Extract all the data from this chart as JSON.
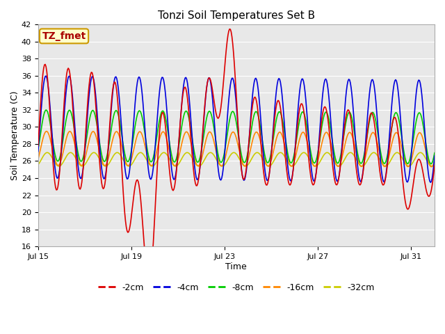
{
  "title": "Tonzi Soil Temperatures Set B",
  "xlabel": "Time",
  "ylabel": "Soil Temperature (C)",
  "ylim": [
    16,
    42
  ],
  "yticks": [
    16,
    18,
    20,
    22,
    24,
    26,
    28,
    30,
    32,
    34,
    36,
    38,
    40,
    42
  ],
  "fig_bg_color": "#ffffff",
  "plot_bg_color": "#e8e8e8",
  "grid_color": "#ffffff",
  "annotation_text": "TZ_fmet",
  "annotation_color": "#aa0000",
  "annotation_bg": "#ffffcc",
  "annotation_border": "#cc9900",
  "colors": {
    "-2cm": "#dd0000",
    "-4cm": "#0000dd",
    "-8cm": "#00cc00",
    "-16cm": "#ff8800",
    "-32cm": "#cccc00"
  },
  "linewidth": 1.2,
  "x_tick_labels": [
    "Jul 15",
    "Jul 19",
    "Jul 23",
    "Jul 27",
    "Jul 31"
  ],
  "x_tick_positions": [
    0,
    4,
    8,
    12,
    16
  ],
  "n_days": 17,
  "legend_labels": [
    "-2cm",
    "-4cm",
    "-8cm",
    "-16cm",
    "-32cm"
  ],
  "legend_colors": [
    "#dd0000",
    "#0000dd",
    "#00cc00",
    "#ff8800",
    "#cccc00"
  ]
}
